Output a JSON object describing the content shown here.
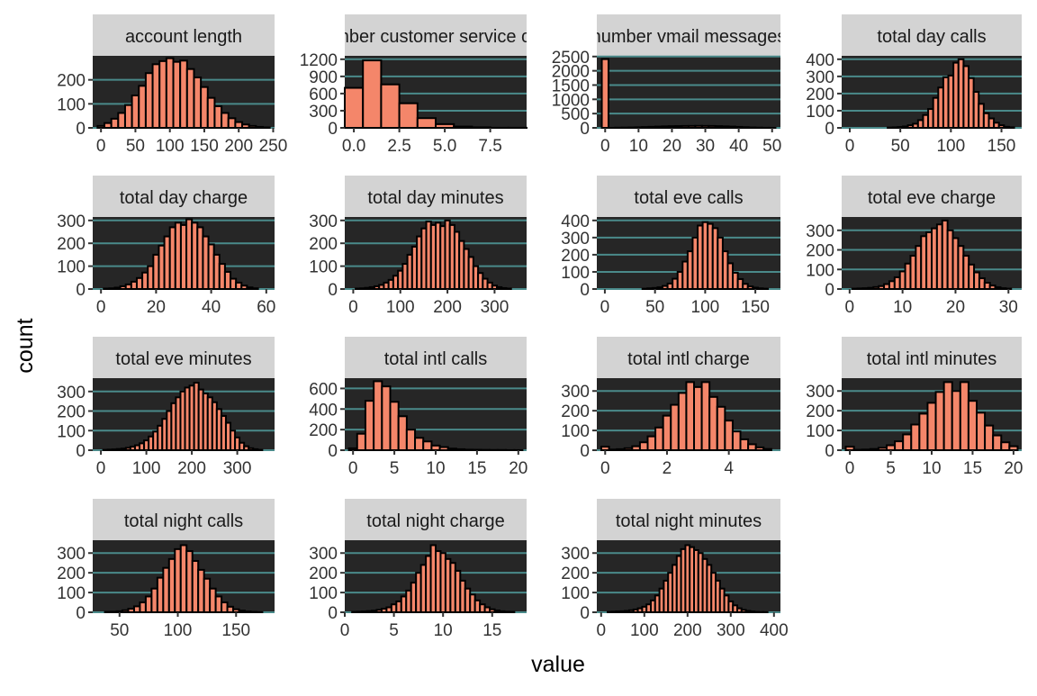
{
  "xlabel": "value",
  "ylabel": "count",
  "colors": {
    "bar_fill": "#f4866a",
    "bar_stroke": "#000000",
    "panel_bg": "#262626",
    "strip_bg": "#d3d3d3",
    "grid": "#4a8a8a",
    "text": "#333333"
  },
  "chart_data": [
    {
      "type": "bar",
      "title": "account length",
      "categories": [
        "0",
        "10",
        "20",
        "30",
        "40",
        "50",
        "60",
        "70",
        "80",
        "90",
        "100",
        "110",
        "120",
        "130",
        "140",
        "150",
        "160",
        "170",
        "180",
        "190",
        "200",
        "210",
        "220",
        "230",
        "240"
      ],
      "values": [
        8,
        20,
        38,
        62,
        95,
        135,
        175,
        228,
        265,
        278,
        290,
        275,
        280,
        245,
        210,
        170,
        125,
        90,
        62,
        40,
        24,
        14,
        8,
        4,
        2
      ],
      "xticks": [
        "0",
        "50",
        "100",
        "150",
        "200",
        "250"
      ],
      "xtick_values": [
        0,
        50,
        100,
        150,
        200,
        250
      ],
      "yticks": [
        "0",
        "100",
        "200"
      ],
      "ytick_values": [
        0,
        100,
        200
      ],
      "xlim": [
        -12,
        252
      ],
      "ylim": [
        0,
        300
      ]
    },
    {
      "type": "bar",
      "title": "number customer service calls",
      "categories": [
        "0",
        "1",
        "2",
        "3",
        "4",
        "5",
        "6",
        "7",
        "8",
        "9"
      ],
      "values": [
        700,
        1180,
        760,
        430,
        170,
        65,
        22,
        9,
        2,
        2
      ],
      "xticks": [
        "0.0",
        "2.5",
        "5.0",
        "7.5"
      ],
      "xtick_values": [
        0,
        2.5,
        5,
        7.5
      ],
      "yticks": [
        "0",
        "300",
        "600",
        "900",
        "1200"
      ],
      "ytick_values": [
        0,
        300,
        600,
        900,
        1200
      ],
      "xlim": [
        -0.5,
        9.5
      ],
      "ylim": [
        0,
        1260
      ]
    },
    {
      "type": "bar",
      "title": "number vmail messages",
      "categories": [
        "0",
        "2",
        "4",
        "6",
        "8",
        "10",
        "12",
        "14",
        "16",
        "18",
        "20",
        "22",
        "24",
        "26",
        "28",
        "30",
        "32",
        "34",
        "36",
        "38",
        "40",
        "42",
        "44",
        "46",
        "48",
        "50"
      ],
      "values": [
        2410,
        2,
        6,
        10,
        14,
        20,
        28,
        36,
        44,
        52,
        58,
        62,
        66,
        68,
        70,
        68,
        66,
        60,
        52,
        44,
        34,
        24,
        14,
        8,
        4,
        2
      ],
      "xticks": [
        "0",
        "10",
        "20",
        "30",
        "40",
        "50"
      ],
      "xtick_values": [
        0,
        10,
        20,
        30,
        40,
        50
      ],
      "yticks": [
        "0",
        "500",
        "1000",
        "1500",
        "2000",
        "2500"
      ],
      "ytick_values": [
        0,
        500,
        1000,
        1500,
        2000,
        2500
      ],
      "xlim": [
        -2.5,
        52.5
      ],
      "ylim": [
        0,
        2525
      ]
    },
    {
      "type": "bar",
      "title": "total day calls",
      "categories": [
        "40",
        "45",
        "50",
        "55",
        "60",
        "65",
        "70",
        "75",
        "80",
        "85",
        "90",
        "95",
        "100",
        "105",
        "110",
        "115",
        "120",
        "125",
        "130",
        "135",
        "140",
        "145",
        "150",
        "155",
        "160"
      ],
      "values": [
        2,
        3,
        5,
        8,
        15,
        24,
        45,
        75,
        110,
        175,
        235,
        295,
        305,
        380,
        400,
        360,
        290,
        210,
        140,
        85,
        55,
        30,
        15,
        6,
        3
      ],
      "xticks": [
        "0",
        "50",
        "100",
        "150"
      ],
      "xtick_values": [
        0,
        50,
        100,
        150
      ],
      "yticks": [
        "0",
        "100",
        "200",
        "300",
        "400"
      ],
      "ytick_values": [
        0,
        100,
        200,
        300,
        400
      ],
      "xlim": [
        -8,
        170
      ],
      "ylim": [
        0,
        420
      ]
    },
    {
      "type": "bar",
      "title": "total day charge",
      "categories": [
        "2",
        "4",
        "6",
        "8",
        "10",
        "12",
        "14",
        "16",
        "18",
        "20",
        "22",
        "24",
        "26",
        "28",
        "30",
        "32",
        "34",
        "36",
        "38",
        "40",
        "42",
        "44",
        "46",
        "48",
        "50",
        "52",
        "54",
        "56"
      ],
      "values": [
        2,
        3,
        6,
        12,
        20,
        32,
        48,
        72,
        100,
        150,
        190,
        230,
        270,
        290,
        280,
        305,
        290,
        270,
        230,
        195,
        150,
        110,
        75,
        45,
        28,
        15,
        7,
        3
      ],
      "xticks": [
        "0",
        "20",
        "40",
        "60"
      ],
      "xtick_values": [
        0,
        20,
        40,
        60
      ],
      "yticks": [
        "0",
        "100",
        "200",
        "300"
      ],
      "ytick_values": [
        0,
        100,
        200,
        300
      ],
      "xlim": [
        -3,
        63
      ],
      "ylim": [
        0,
        315
      ]
    },
    {
      "type": "bar",
      "title": "total day minutes",
      "categories": [
        "10",
        "20",
        "30",
        "40",
        "50",
        "60",
        "70",
        "80",
        "90",
        "100",
        "110",
        "120",
        "130",
        "140",
        "150",
        "160",
        "170",
        "180",
        "190",
        "200",
        "210",
        "220",
        "230",
        "240",
        "250",
        "260",
        "270",
        "280",
        "290",
        "300",
        "310",
        "320",
        "330"
      ],
      "values": [
        2,
        3,
        5,
        8,
        12,
        18,
        28,
        40,
        58,
        80,
        110,
        150,
        185,
        230,
        265,
        295,
        280,
        290,
        275,
        300,
        280,
        250,
        210,
        175,
        140,
        100,
        70,
        45,
        28,
        15,
        8,
        4,
        2
      ],
      "xticks": [
        "0",
        "100",
        "200",
        "300"
      ],
      "xtick_values": [
        0,
        100,
        200,
        300
      ],
      "yticks": [
        "0",
        "100",
        "200",
        "300"
      ],
      "ytick_values": [
        0,
        100,
        200,
        300
      ],
      "xlim": [
        -18,
        368
      ],
      "ylim": [
        0,
        315
      ]
    },
    {
      "type": "bar",
      "title": "total eve calls",
      "categories": [
        "40",
        "45",
        "50",
        "55",
        "60",
        "65",
        "70",
        "75",
        "80",
        "85",
        "90",
        "95",
        "100",
        "105",
        "110",
        "115",
        "120",
        "125",
        "130",
        "135",
        "140",
        "145",
        "150",
        "155",
        "160"
      ],
      "values": [
        2,
        4,
        6,
        10,
        18,
        32,
        60,
        100,
        160,
        220,
        300,
        370,
        390,
        380,
        355,
        300,
        220,
        150,
        95,
        58,
        30,
        15,
        8,
        4,
        2
      ],
      "xticks": [
        "0",
        "50",
        "100",
        "150"
      ],
      "xtick_values": [
        0,
        50,
        100,
        150
      ],
      "yticks": [
        "0",
        "100",
        "200",
        "300",
        "400"
      ],
      "ytick_values": [
        0,
        100,
        200,
        300,
        400
      ],
      "xlim": [
        -8,
        175
      ],
      "ylim": [
        0,
        420
      ]
    },
    {
      "type": "bar",
      "title": "total eve charge",
      "categories": [
        "1",
        "2",
        "3",
        "4",
        "5",
        "6",
        "7",
        "8",
        "9",
        "10",
        "11",
        "12",
        "13",
        "14",
        "15",
        "16",
        "17",
        "18",
        "19",
        "20",
        "21",
        "22",
        "23",
        "24",
        "25",
        "26",
        "27",
        "28",
        "29",
        "30"
      ],
      "values": [
        2,
        3,
        4,
        6,
        10,
        15,
        25,
        40,
        60,
        90,
        130,
        170,
        220,
        270,
        290,
        310,
        330,
        350,
        300,
        260,
        220,
        170,
        125,
        85,
        55,
        32,
        18,
        9,
        4,
        2
      ],
      "xticks": [
        "0",
        "10",
        "20",
        "30"
      ],
      "xtick_values": [
        0,
        10,
        20,
        30
      ],
      "yticks": [
        "0",
        "100",
        "200",
        "300"
      ],
      "ytick_values": [
        0,
        100,
        200,
        300
      ],
      "xlim": [
        -1.5,
        32.5
      ],
      "ylim": [
        0,
        368
      ]
    },
    {
      "type": "bar",
      "title": "total eve minutes",
      "categories": [
        "10",
        "20",
        "30",
        "40",
        "50",
        "60",
        "70",
        "80",
        "90",
        "100",
        "110",
        "120",
        "130",
        "140",
        "150",
        "160",
        "170",
        "180",
        "190",
        "200",
        "210",
        "220",
        "230",
        "240",
        "250",
        "260",
        "270",
        "280",
        "290",
        "300",
        "310",
        "320",
        "330",
        "340",
        "350"
      ],
      "values": [
        2,
        3,
        4,
        6,
        8,
        12,
        18,
        25,
        35,
        50,
        70,
        95,
        125,
        160,
        200,
        240,
        270,
        300,
        320,
        330,
        345,
        310,
        290,
        270,
        245,
        210,
        175,
        140,
        100,
        65,
        38,
        20,
        10,
        5,
        2
      ],
      "xticks": [
        "0",
        "100",
        "200",
        "300"
      ],
      "xtick_values": [
        0,
        100,
        200,
        300
      ],
      "yticks": [
        "0",
        "100",
        "200",
        "300"
      ],
      "ytick_values": [
        0,
        100,
        200,
        300
      ],
      "xlim": [
        -18,
        382
      ],
      "ylim": [
        0,
        368
      ]
    },
    {
      "type": "bar",
      "title": "total intl calls",
      "categories": [
        "0",
        "1",
        "2",
        "3",
        "4",
        "5",
        "6",
        "7",
        "8",
        "9",
        "10",
        "11",
        "12",
        "13",
        "14",
        "15",
        "16",
        "17",
        "18",
        "19",
        "20"
      ],
      "values": [
        18,
        160,
        480,
        670,
        620,
        470,
        330,
        200,
        120,
        85,
        45,
        30,
        15,
        9,
        5,
        4,
        3,
        2,
        2,
        1,
        1
      ],
      "xticks": [
        "0",
        "5",
        "10",
        "15",
        "20"
      ],
      "xtick_values": [
        0,
        5,
        10,
        15,
        20
      ],
      "yticks": [
        "0",
        "200",
        "400",
        "600"
      ],
      "ytick_values": [
        0,
        200,
        400,
        600
      ],
      "xlim": [
        -1,
        21
      ],
      "ylim": [
        0,
        700
      ]
    },
    {
      "type": "bar",
      "title": "total intl charge",
      "categories": [
        "0",
        "0.25",
        "0.5",
        "0.75",
        "1",
        "1.25",
        "1.5",
        "1.75",
        "2",
        "2.25",
        "2.5",
        "2.75",
        "3",
        "3.25",
        "3.5",
        "3.75",
        "4",
        "4.25",
        "4.5",
        "4.75",
        "5",
        "5.25"
      ],
      "values": [
        18,
        3,
        5,
        10,
        20,
        40,
        70,
        115,
        175,
        230,
        290,
        345,
        320,
        345,
        270,
        220,
        150,
        95,
        55,
        30,
        14,
        6
      ],
      "xticks": [
        "0",
        "2",
        "4"
      ],
      "xtick_values": [
        0,
        2,
        4
      ],
      "yticks": [
        "0",
        "100",
        "200",
        "300"
      ],
      "ytick_values": [
        0,
        100,
        200,
        300
      ],
      "xlim": [
        -0.27,
        5.67
      ],
      "ylim": [
        0,
        365
      ]
    },
    {
      "type": "bar",
      "title": "total intl minutes",
      "categories": [
        "0",
        "1",
        "2",
        "3",
        "4",
        "5",
        "6",
        "7",
        "8",
        "9",
        "10",
        "11",
        "12",
        "13",
        "14",
        "15",
        "16",
        "17",
        "18",
        "19",
        "20"
      ],
      "values": [
        18,
        2,
        3,
        6,
        12,
        25,
        45,
        80,
        130,
        185,
        240,
        295,
        345,
        300,
        345,
        250,
        190,
        125,
        75,
        40,
        20
      ],
      "xticks": [
        "0",
        "5",
        "10",
        "15",
        "20"
      ],
      "xtick_values": [
        0,
        5,
        10,
        15,
        20
      ],
      "yticks": [
        "0",
        "100",
        "200",
        "300"
      ],
      "ytick_values": [
        0,
        100,
        200,
        300
      ],
      "xlim": [
        -1,
        21
      ],
      "ylim": [
        0,
        365
      ]
    },
    {
      "type": "bar",
      "title": "total night calls",
      "categories": [
        "40",
        "45",
        "50",
        "55",
        "60",
        "65",
        "70",
        "75",
        "80",
        "85",
        "90",
        "95",
        "100",
        "105",
        "110",
        "115",
        "120",
        "125",
        "130",
        "135",
        "140",
        "145",
        "150",
        "155",
        "160",
        "165",
        "170"
      ],
      "values": [
        2,
        3,
        5,
        10,
        18,
        30,
        50,
        80,
        120,
        175,
        225,
        270,
        320,
        340,
        310,
        260,
        215,
        170,
        120,
        80,
        50,
        28,
        15,
        8,
        4,
        2,
        1
      ],
      "xticks": [
        "50",
        "100",
        "150"
      ],
      "xtick_values": [
        50,
        100,
        150
      ],
      "yticks": [
        "0",
        "100",
        "200",
        "300"
      ],
      "ytick_values": [
        0,
        100,
        200,
        300
      ],
      "xlim": [
        27,
        183
      ],
      "ylim": [
        0,
        365
      ]
    },
    {
      "type": "bar",
      "title": "total night charge",
      "categories": [
        "1",
        "1.5",
        "2",
        "2.5",
        "3",
        "3.5",
        "4",
        "4.5",
        "5",
        "5.5",
        "6",
        "6.5",
        "7",
        "7.5",
        "8",
        "8.5",
        "9",
        "9.5",
        "10",
        "10.5",
        "11",
        "11.5",
        "12",
        "12.5",
        "13",
        "13.5",
        "14",
        "14.5",
        "15",
        "15.5",
        "16",
        "16.5",
        "17"
      ],
      "values": [
        2,
        3,
        4,
        6,
        8,
        12,
        18,
        25,
        40,
        55,
        80,
        110,
        150,
        200,
        240,
        285,
        340,
        310,
        300,
        270,
        250,
        210,
        160,
        120,
        90,
        60,
        40,
        25,
        15,
        9,
        5,
        3,
        2
      ],
      "xticks": [
        "0",
        "5",
        "10",
        "15"
      ],
      "xtick_values": [
        0,
        5,
        10,
        15
      ],
      "yticks": [
        "0",
        "100",
        "200",
        "300"
      ],
      "ytick_values": [
        0,
        100,
        200,
        300
      ],
      "xlim": [
        0,
        18.5
      ],
      "ylim": [
        0,
        365
      ]
    },
    {
      "type": "bar",
      "title": "total night minutes",
      "categories": [
        "20",
        "30",
        "40",
        "50",
        "60",
        "70",
        "80",
        "90",
        "100",
        "110",
        "120",
        "130",
        "140",
        "150",
        "160",
        "170",
        "180",
        "190",
        "200",
        "210",
        "220",
        "230",
        "240",
        "250",
        "260",
        "270",
        "280",
        "290",
        "300",
        "310",
        "320",
        "330",
        "340",
        "350",
        "360",
        "370",
        "380"
      ],
      "values": [
        2,
        3,
        4,
        5,
        7,
        10,
        14,
        20,
        28,
        40,
        60,
        85,
        120,
        160,
        200,
        240,
        285,
        320,
        340,
        330,
        315,
        300,
        270,
        240,
        200,
        160,
        120,
        85,
        55,
        35,
        20,
        12,
        7,
        4,
        2,
        1,
        1
      ],
      "xticks": [
        "0",
        "100",
        "200",
        "300",
        "400"
      ],
      "xtick_values": [
        0,
        100,
        200,
        300,
        400
      ],
      "yticks": [
        "0",
        "100",
        "200",
        "300"
      ],
      "ytick_values": [
        0,
        100,
        200,
        300
      ],
      "xlim": [
        -10,
        415
      ],
      "ylim": [
        0,
        365
      ]
    }
  ]
}
